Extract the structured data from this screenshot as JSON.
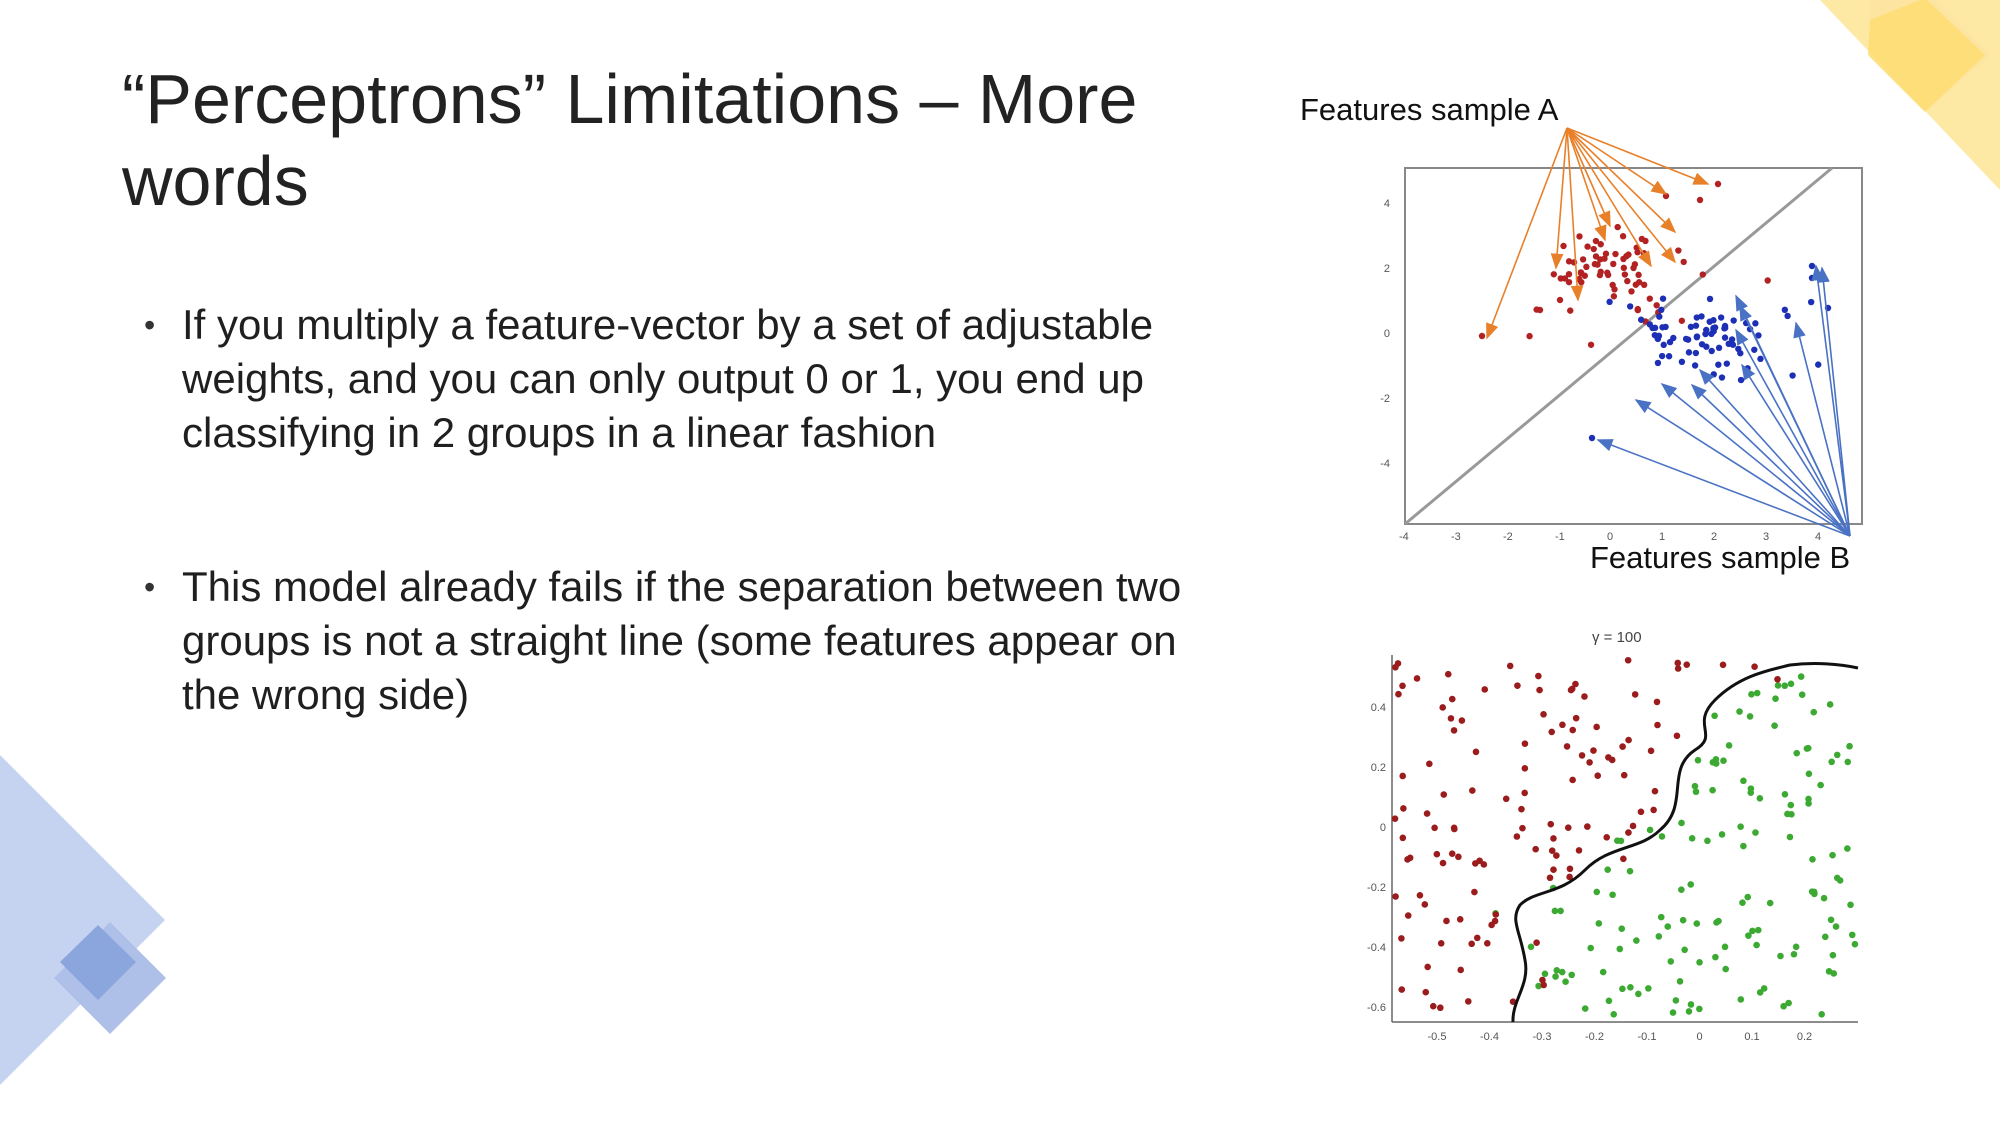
{
  "slide": {
    "title": "“Perceptrons” Limitations – More words",
    "bullets": [
      "If you multiply a feature-vector by a set of adjustable weights, and you can only output 0 or 1, you end up classifying in 2 groups in a linear fashion",
      "This model already fails if the separation between two groups is not a straight line (some features appear on the wrong side)"
    ]
  },
  "figures": {
    "linear": {
      "label_a": "Features sample A",
      "label_b": "Features sample B",
      "x_ticks": [
        "-4",
        "-3",
        "-2",
        "-1",
        "0",
        "1",
        "2",
        "3",
        "4"
      ],
      "y_ticks": [
        "4",
        "2",
        "0",
        "-2",
        "-4"
      ],
      "colors": {
        "group_a": "#b22222",
        "group_b": "#1c2fb5",
        "arrow_a": "#e8802a",
        "arrow_b": "#4a72c4"
      }
    },
    "nonlinear": {
      "title": "γ = 100",
      "x_ticks": [
        "-0.5",
        "-0.4",
        "-0.3",
        "-0.2",
        "-0.1",
        "0",
        "0.1",
        "0.2"
      ],
      "y_ticks": [
        "0.4",
        "0.2",
        "0",
        "-0.2",
        "-0.4",
        "-0.6"
      ],
      "colors": {
        "group_red": "#9b1c1c",
        "group_green": "#3caa32",
        "boundary": "#111111"
      }
    }
  },
  "decor": {
    "accent_blue": "#aebfe8",
    "accent_yellow": "#fde79a"
  }
}
